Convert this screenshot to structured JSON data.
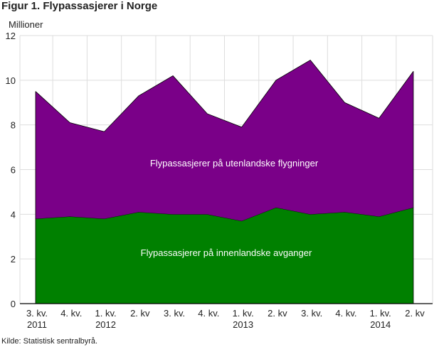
{
  "title": "Figur 1. Flypassasjerer i Norge",
  "y_unit": "Millioner",
  "source": "Kilde: Statistisk sentralbyrå.",
  "colors": {
    "domestic": "#008000",
    "international": "#7a0088",
    "grid": "#dddddd",
    "axis": "#000000"
  },
  "chart_data": {
    "type": "area",
    "stacked": true,
    "categories": [
      "3. kv.",
      "4. kv.",
      "1. kv.",
      "2. kv",
      "3. kv.",
      "4. kv.",
      "1. kv.",
      "2. kv",
      "3. kv.",
      "4. kv.",
      "1. kv.",
      "2. kv"
    ],
    "category_years": [
      "2011",
      "",
      "2012",
      "",
      "",
      "",
      "2013",
      "",
      "",
      "",
      "2014",
      ""
    ],
    "series": [
      {
        "name": "Flypassasjerer på innenlandske avganger",
        "values": [
          3.8,
          3.9,
          3.8,
          4.1,
          4.0,
          4.0,
          3.7,
          4.3,
          4.0,
          4.1,
          3.9,
          4.3
        ]
      },
      {
        "name": "Flypassasjerer på utenlandske flygninger",
        "values": [
          5.7,
          4.2,
          3.9,
          5.2,
          6.2,
          4.5,
          4.2,
          5.7,
          6.9,
          4.9,
          4.4,
          6.1
        ]
      }
    ],
    "ylim": [
      0,
      12
    ],
    "yticks": [
      0,
      2,
      4,
      6,
      8,
      10,
      12
    ],
    "grid": true
  }
}
